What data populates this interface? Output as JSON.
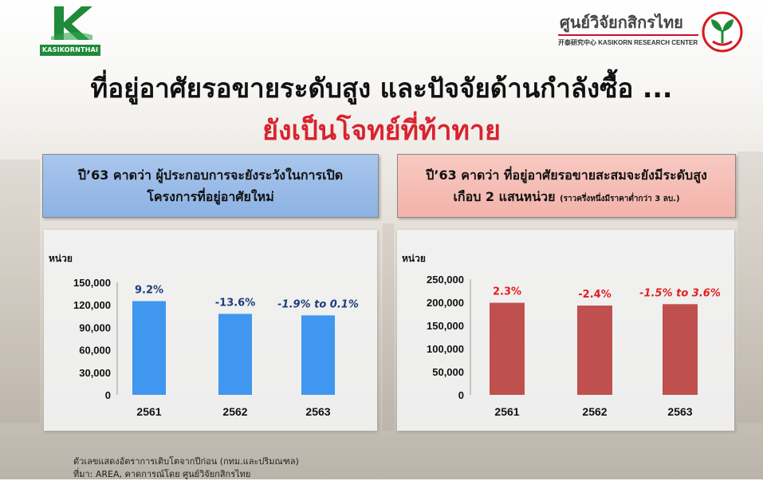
{
  "header": {
    "logo_left_text": "KASIKORNTHAI",
    "logo_right_th": "ศูนย์วิจัยกสิกรไทย",
    "logo_right_en": "开泰研究中心 KASIKORN RESEARCH CENTER"
  },
  "title": "ที่อยู่อาศัยรอขายระดับสูง และปัจจัยด้านกำลังซื้อ ...",
  "subtitle": "ยังเป็นโจทย์ที่ท้าทาย",
  "boxes": {
    "left_line1": "ปี’63 คาดว่า ผู้ประกอบการจะยังระวังในการเปิด",
    "left_line2": "โครงการที่อยู่อาศัยใหม่",
    "right_line1": "ปี’63 คาดว่า ที่อยู่อาศัยรอขายสะสมจะยังมีระดับสูง",
    "right_line2": "เกือบ 2 แสนหน่วย",
    "right_note": "(ราวครึ่งหนึ่งมีราคาต่ำกว่า 3 ลบ.)"
  },
  "chart_data": [
    {
      "type": "bar",
      "unit_label": "หน่วย",
      "categories": [
        "2561",
        "2562",
        "2563"
      ],
      "values": [
        125000,
        108000,
        106000
      ],
      "data_labels": [
        "9.2%",
        "-13.6%",
        "-1.9% to 0.1%"
      ],
      "yticks": [
        "150,000",
        "120,000",
        "90,000",
        "60,000",
        "30,000",
        "0"
      ],
      "ylim": [
        0,
        150000
      ],
      "color": "#3f97f0",
      "label_color": "#1f3d7a"
    },
    {
      "type": "bar",
      "unit_label": "หน่วย",
      "categories": [
        "2561",
        "2562",
        "2563"
      ],
      "values": [
        199000,
        193000,
        196000
      ],
      "data_labels": [
        "2.3%",
        "-2.4%",
        "-1.5% to 3.6%"
      ],
      "yticks": [
        "250,000",
        "200,000",
        "150,000",
        "100,000",
        "50,000",
        "0"
      ],
      "ylim": [
        0,
        250000
      ],
      "color": "#c0504d",
      "label_color": "#e01f1f"
    }
  ],
  "footnote": {
    "line1": "ตัวเลขแสดงอัตราการเติบโตจากปีก่อน (กทม.และปริมณฑล)",
    "line2": "ที่มา: AREA, คาดการณ์โดย ศูนย์วิจัยกสิกรไทย"
  }
}
